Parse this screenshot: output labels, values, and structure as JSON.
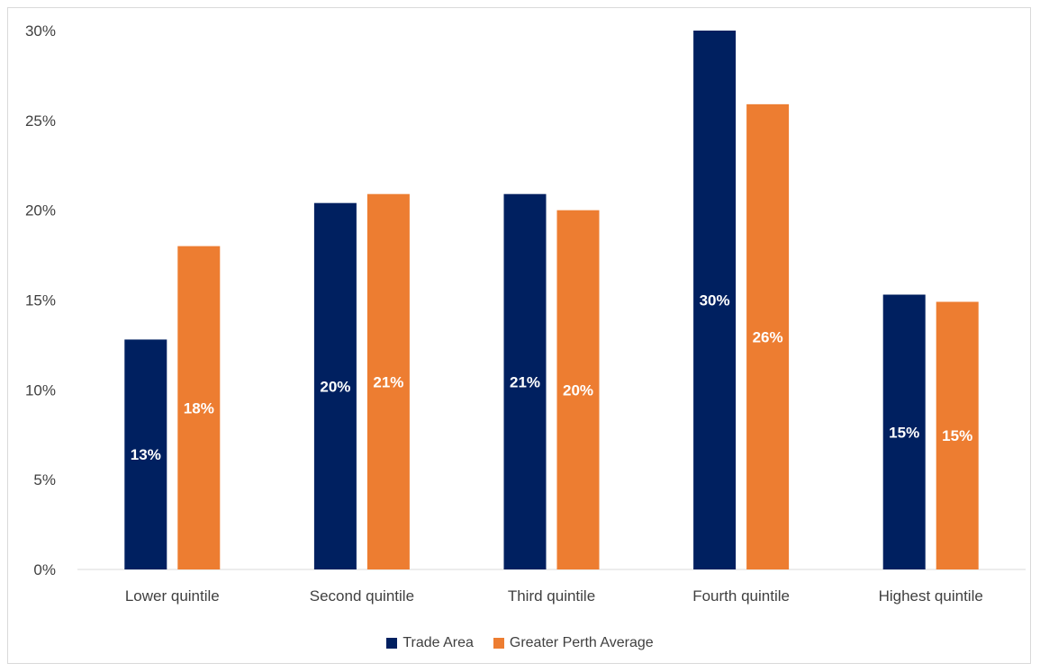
{
  "chart_data": {
    "type": "bar",
    "categories": [
      "Lower quintile",
      "Second quintile",
      "Third quintile",
      "Fourth quintile",
      "Highest quintile"
    ],
    "series": [
      {
        "name": "Trade Area",
        "color": "#002060",
        "values": [
          12.8,
          20.4,
          20.9,
          30.0,
          15.3
        ],
        "labels": [
          "13%",
          "20%",
          "21%",
          "30%",
          "15%"
        ]
      },
      {
        "name": "Greater Perth Average",
        "color": "#ED7D31",
        "values": [
          18.0,
          20.9,
          20.0,
          25.9,
          14.9
        ],
        "labels": [
          "18%",
          "21%",
          "20%",
          "26%",
          "15%"
        ]
      }
    ],
    "ylim": [
      0,
      30
    ],
    "yticks": [
      0,
      5,
      10,
      15,
      20,
      25,
      30
    ],
    "ytick_labels": [
      "0%",
      "5%",
      "10%",
      "15%",
      "20%",
      "25%",
      "30%"
    ],
    "grid": false,
    "legend_position": "bottom"
  }
}
